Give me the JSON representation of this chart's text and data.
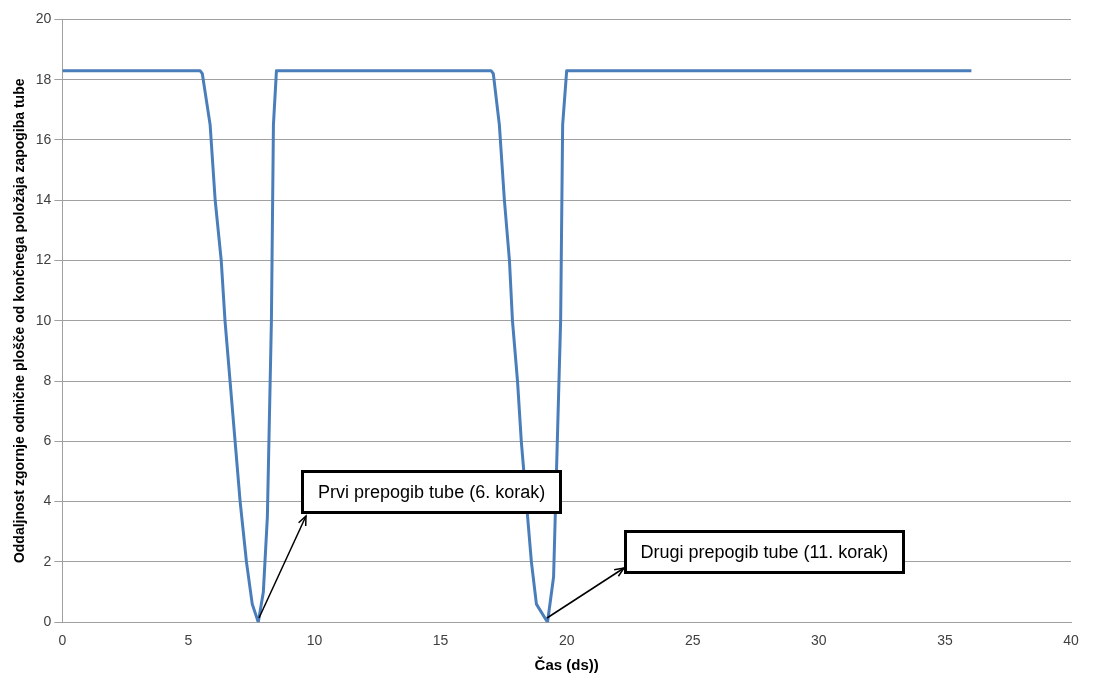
{
  "chart_data": {
    "type": "line",
    "xlabel": "Čas (ds))",
    "ylabel": "Oddaljnost zgornje odmične plošče od končnega položaja zapogiba tube",
    "xlim": [
      0,
      40
    ],
    "xticks": [
      0,
      5,
      10,
      15,
      20,
      25,
      30,
      35,
      40
    ],
    "ylim": [
      0,
      20
    ],
    "yticks": [
      0,
      2,
      4,
      6,
      8,
      10,
      12,
      14,
      16,
      18,
      20
    ],
    "grid": "y",
    "legend": false,
    "marker": "none",
    "line_style": "solid",
    "series": [
      {
        "color": "#4a7ebb",
        "x": [
          0,
          5.46,
          5.55,
          5.86,
          6.06,
          6.3,
          6.45,
          6.65,
          6.85,
          7.05,
          7.3,
          7.53,
          7.77,
          7.97,
          8.13,
          8.29,
          8.37,
          8.49,
          17.0,
          17.09,
          17.33,
          17.53,
          17.73,
          17.85,
          18.05,
          18.2,
          18.4,
          18.6,
          18.8,
          19.24,
          19.48,
          19.64,
          19.76,
          19.84,
          20.0,
          36.05
        ],
        "values": [
          18.3,
          18.3,
          18.2,
          16.5,
          14,
          12,
          10,
          8,
          6,
          4,
          2,
          0.6,
          0,
          1,
          3.5,
          10,
          16.5,
          18.3,
          18.3,
          18.2,
          16.5,
          14,
          12,
          10,
          8,
          6,
          null,
          2,
          0.6,
          0,
          1.5,
          null,
          10,
          16.5,
          18.3,
          18.3
        ]
      }
    ],
    "annotations": [
      {
        "text": "Prvi prepogib tube (6. korak)",
        "x": 7.8,
        "y": 0
      },
      {
        "text": "Drugi prepogib tube (11. korak)",
        "x": 19.2,
        "y": 0
      }
    ]
  }
}
